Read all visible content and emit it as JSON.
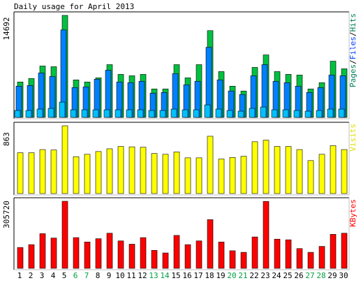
{
  "chart_data": [
    {
      "panel": "hits-files-pages",
      "type": "bar",
      "title": "Daily usage for April 2013",
      "ylabel_parts": [
        {
          "text": "Pages",
          "color": "#00805C"
        },
        {
          "text": "/",
          "color": "#000000"
        },
        {
          "text": "Files",
          "color": "#0040FF"
        },
        {
          "text": "/",
          "color": "#000000"
        },
        {
          "text": "Hits",
          "color": "#00805C"
        }
      ],
      "ymax": 14692,
      "ymax_label": "14692",
      "categories": [
        "1",
        "2",
        "3",
        "4",
        "5",
        "6",
        "7",
        "8",
        "9",
        "10",
        "11",
        "12",
        "13",
        "14",
        "15",
        "16",
        "17",
        "18",
        "19",
        "20",
        "21",
        "22",
        "23",
        "24",
        "25",
        "26",
        "27",
        "28",
        "29",
        "30"
      ],
      "series": [
        {
          "name": "Hits",
          "color": "#00C040",
          "values": [
            5100,
            5600,
            7400,
            7300,
            14692,
            5400,
            5100,
            5700,
            7600,
            6200,
            6000,
            6200,
            4100,
            4100,
            7600,
            5700,
            7600,
            12500,
            6600,
            4500,
            3800,
            7200,
            9000,
            6600,
            6200,
            6100,
            4100,
            5000,
            8100,
            7000
          ]
        },
        {
          "name": "Files",
          "color": "#0080FF",
          "values": [
            4500,
            4600,
            6400,
            5900,
            12600,
            4300,
            4400,
            5500,
            6800,
            5100,
            5000,
            5200,
            3500,
            3600,
            6300,
            4700,
            5200,
            10100,
            5400,
            3800,
            3300,
            6000,
            7600,
            5200,
            5000,
            4500,
            3600,
            4300,
            6100,
            6000
          ]
        },
        {
          "name": "Pages",
          "color": "#00C0FF",
          "values": [
            1000,
            1000,
            1200,
            1300,
            2200,
            1100,
            1100,
            1100,
            1100,
            1100,
            1100,
            1100,
            1000,
            1000,
            1200,
            1100,
            1100,
            1800,
            1200,
            1000,
            900,
            1300,
            1500,
            1100,
            1100,
            1000,
            900,
            1000,
            1200,
            1200
          ]
        }
      ]
    },
    {
      "panel": "visits",
      "type": "bar",
      "ylabel": "Visits",
      "ylabel_color": "#E0E000",
      "ymax": 863,
      "ymax_label": "863",
      "series": [
        {
          "name": "Visits",
          "color": "#FFFF00",
          "values": [
            520,
            520,
            560,
            555,
            863,
            470,
            500,
            535,
            570,
            600,
            595,
            590,
            510,
            500,
            530,
            455,
            455,
            730,
            440,
            460,
            475,
            660,
            680,
            600,
            600,
            560,
            420,
            500,
            610,
            560
          ]
        }
      ]
    },
    {
      "panel": "kbytes",
      "type": "bar",
      "ylabel": "KBytes",
      "ylabel_color": "#FF0000",
      "ymax": 305720,
      "ymax_label": "305720",
      "series": [
        {
          "name": "KBytes",
          "color": "#FF0000",
          "values": [
            95000,
            108000,
            158000,
            138000,
            305720,
            140000,
            120000,
            135000,
            160000,
            125000,
            110000,
            140000,
            82000,
            70000,
            150000,
            108000,
            125000,
            222000,
            120000,
            80000,
            73000,
            143000,
            305000,
            133000,
            130000,
            90000,
            73000,
            100000,
            155000,
            160000
          ]
        }
      ]
    }
  ],
  "x_tick_labels": [
    "1",
    "2",
    "3",
    "4",
    "5",
    "6",
    "7",
    "8",
    "9",
    "10",
    "11",
    "12",
    "13",
    "14",
    "15",
    "16",
    "17",
    "18",
    "19",
    "20",
    "21",
    "22",
    "23",
    "24",
    "25",
    "26",
    "27",
    "28",
    "29",
    "30"
  ],
  "weekend_days": [
    "6",
    "7",
    "13",
    "14",
    "20",
    "21",
    "27",
    "28"
  ],
  "colors": {
    "weekday_label": "#000000",
    "weekend_label": "#00A040",
    "frame_dark": "#000000",
    "frame_light": "#C0C0C0",
    "background": "#FFFFFF",
    "bar_outline": "#000000"
  }
}
